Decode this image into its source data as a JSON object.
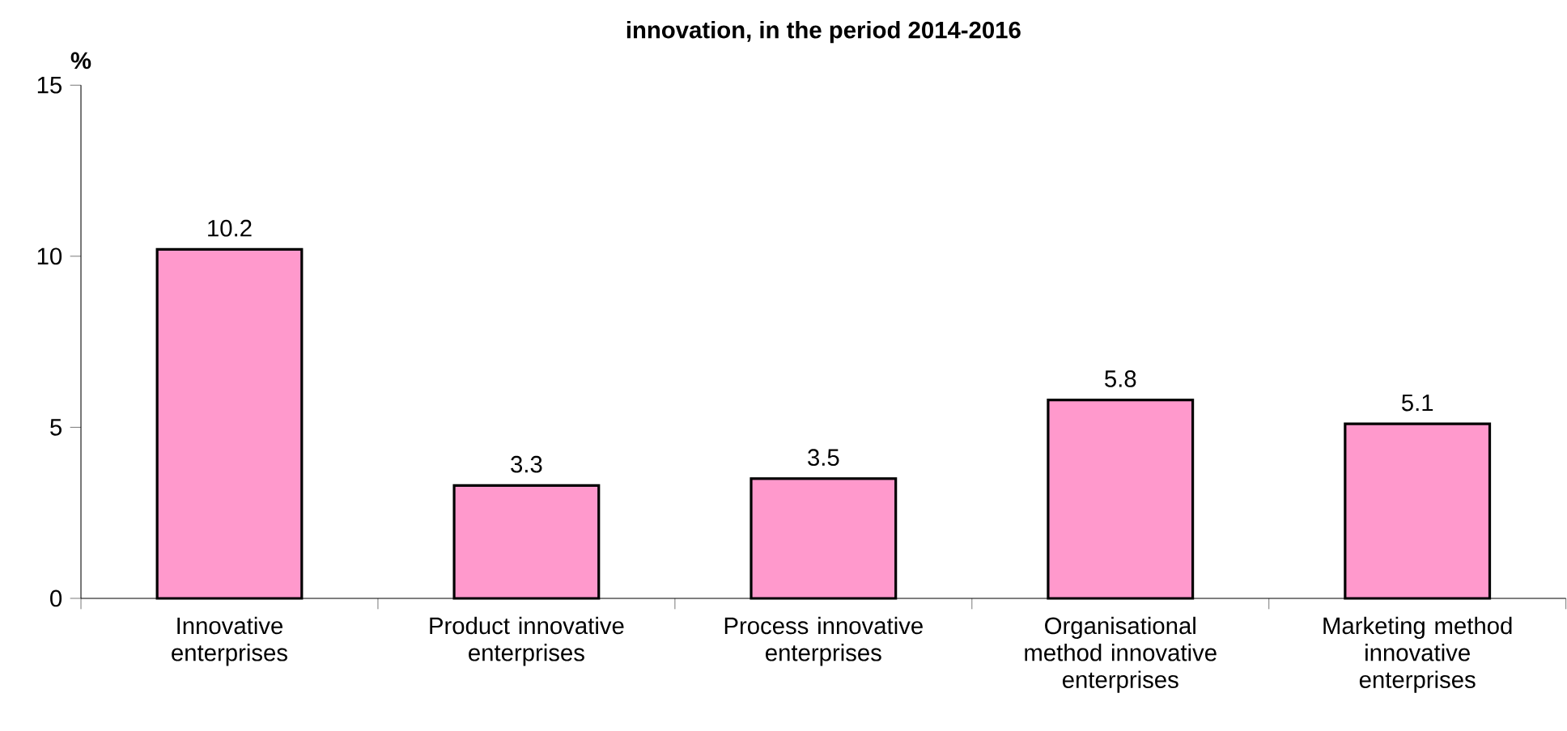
{
  "chart_data": {
    "type": "bar",
    "title": "innovation, in the period 2014-2016",
    "ylabel": "%",
    "categories": [
      "Innovative enterprises",
      "Product innovative enterprises",
      "Process innovative enterprises",
      "Organisational method innovative enterprises",
      "Marketing method innovative enterprises"
    ],
    "values": [
      10.2,
      3.3,
      3.5,
      5.8,
      5.1
    ],
    "color": "#ff99cc",
    "ylim": [
      0,
      15
    ],
    "yticks": [
      0,
      5,
      10,
      15
    ],
    "data_labels": true
  }
}
